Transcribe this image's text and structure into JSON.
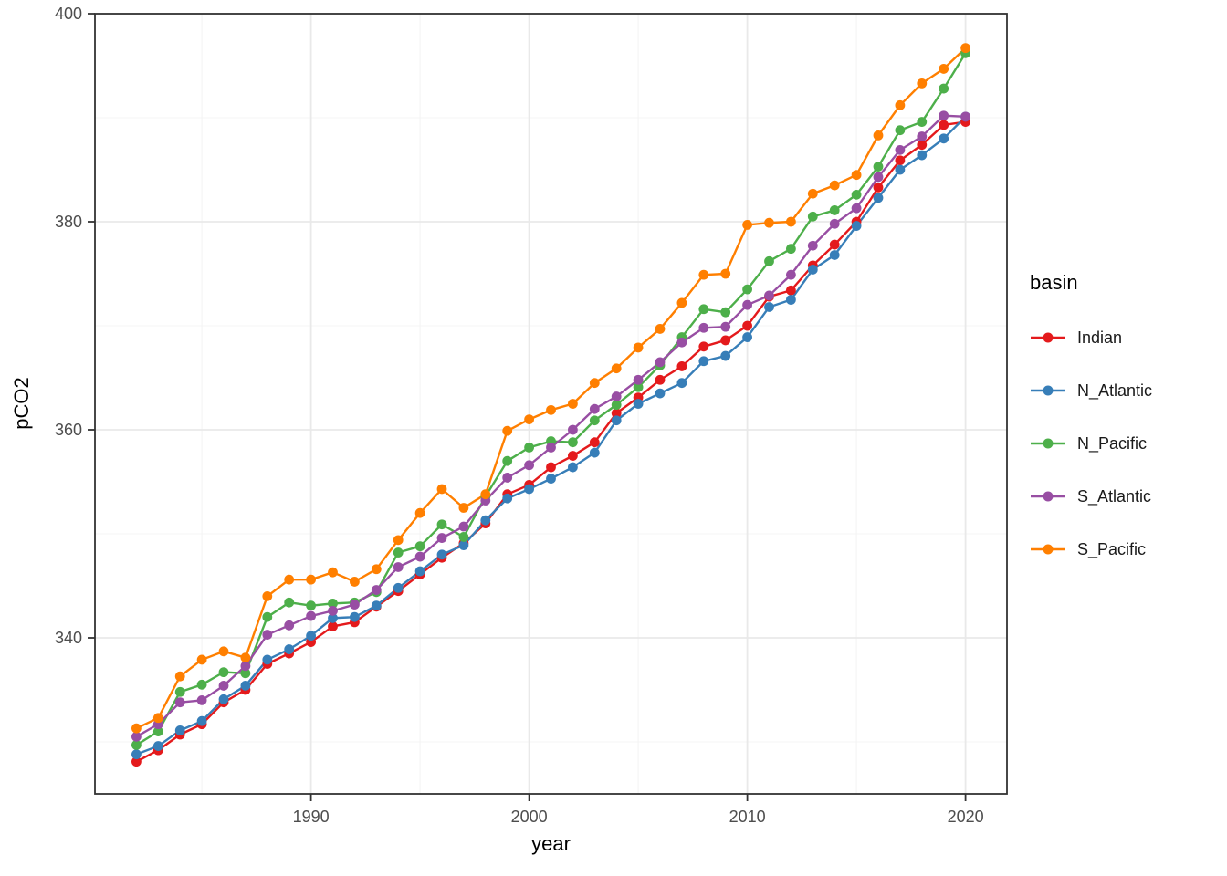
{
  "figure": {
    "background": "#ffffff"
  },
  "chart_data": {
    "type": "line",
    "title": "",
    "xlabel": "year",
    "ylabel": "pCO2",
    "legend_title": "basin",
    "legend_position": "right",
    "grid": true,
    "marker": "point",
    "x": [
      1982,
      1983,
      1984,
      1985,
      1986,
      1987,
      1988,
      1989,
      1990,
      1991,
      1992,
      1993,
      1994,
      1995,
      1996,
      1997,
      1998,
      1999,
      2000,
      2001,
      2002,
      2003,
      2004,
      2005,
      2006,
      2007,
      2008,
      2009,
      2010,
      2011,
      2012,
      2013,
      2014,
      2015,
      2016,
      2017,
      2018,
      2019,
      2020
    ],
    "xlim": [
      1980.1,
      2021.9
    ],
    "ylim": [
      325,
      400
    ],
    "x_ticks": [
      1990,
      2000,
      2010,
      2020
    ],
    "x_minor_ticks": [
      1985,
      1995,
      2005,
      2015
    ],
    "y_ticks": [
      340,
      360,
      380,
      400
    ],
    "y_minor_ticks": [
      330,
      350,
      370,
      390
    ],
    "series": [
      {
        "name": "Indian",
        "color": "#E41A1C",
        "values": [
          328.1,
          329.2,
          330.7,
          331.7,
          333.8,
          335.0,
          337.5,
          338.5,
          339.6,
          341.1,
          341.5,
          343.0,
          344.5,
          346.1,
          347.7,
          349.1,
          351.0,
          353.8,
          354.7,
          356.4,
          357.5,
          358.8,
          361.6,
          363.1,
          364.8,
          366.1,
          368.0,
          368.6,
          370.0,
          372.8,
          373.4,
          375.8,
          377.8,
          380.0,
          383.3,
          385.9,
          387.4,
          389.3,
          389.6
        ]
      },
      {
        "name": "N_Atlantic",
        "color": "#377EB8",
        "values": [
          328.8,
          329.6,
          331.1,
          332.0,
          334.1,
          335.4,
          337.9,
          338.9,
          340.2,
          341.9,
          342.0,
          343.1,
          344.8,
          346.4,
          348.0,
          348.9,
          351.3,
          353.4,
          354.3,
          355.3,
          356.4,
          357.8,
          360.9,
          362.5,
          363.5,
          364.5,
          366.6,
          367.1,
          368.9,
          371.8,
          372.5,
          375.4,
          376.8,
          379.6,
          382.3,
          385.0,
          386.4,
          388.0,
          390.1
        ]
      },
      {
        "name": "N_Pacific",
        "color": "#4DAF4A",
        "values": [
          329.7,
          331.0,
          334.8,
          335.5,
          336.7,
          336.6,
          342.0,
          343.4,
          343.1,
          343.3,
          343.4,
          344.4,
          348.2,
          348.8,
          350.9,
          349.7,
          353.6,
          357.0,
          358.3,
          358.9,
          358.8,
          360.9,
          362.4,
          364.1,
          366.2,
          368.9,
          371.6,
          371.3,
          373.5,
          376.2,
          377.4,
          380.5,
          381.1,
          382.6,
          385.3,
          388.8,
          389.6,
          392.8,
          396.2
        ]
      },
      {
        "name": "S_Atlantic",
        "color": "#984EA3",
        "values": [
          330.5,
          331.7,
          333.8,
          334.0,
          335.4,
          337.3,
          340.3,
          341.2,
          342.1,
          342.6,
          343.2,
          344.6,
          346.8,
          347.8,
          349.6,
          350.7,
          353.2,
          355.4,
          356.6,
          358.3,
          360.0,
          362.0,
          363.2,
          364.8,
          366.5,
          368.4,
          369.8,
          369.9,
          372.0,
          372.9,
          374.9,
          377.7,
          379.8,
          381.3,
          384.3,
          386.9,
          388.2,
          390.2,
          390.1
        ]
      },
      {
        "name": "S_Pacific",
        "color": "#FF7F00",
        "values": [
          331.3,
          332.3,
          336.3,
          337.9,
          338.7,
          338.1,
          344.0,
          345.6,
          345.6,
          346.3,
          345.4,
          346.6,
          349.4,
          352.0,
          354.3,
          352.5,
          353.8,
          359.9,
          361.0,
          361.9,
          362.5,
          364.5,
          365.9,
          367.9,
          369.7,
          372.2,
          374.9,
          375.0,
          379.7,
          379.9,
          380.0,
          382.7,
          383.5,
          384.5,
          388.3,
          391.2,
          393.3,
          394.7,
          396.7
        ]
      }
    ],
    "style": {
      "panel_border": "#333333",
      "grid_major": "#e9e9e9",
      "grid_minor": "#f4f4f4",
      "tick_color": "#333333",
      "tick_label_color": "#4d4d4d",
      "point_radius": 5.4,
      "line_width": 2.4
    }
  }
}
